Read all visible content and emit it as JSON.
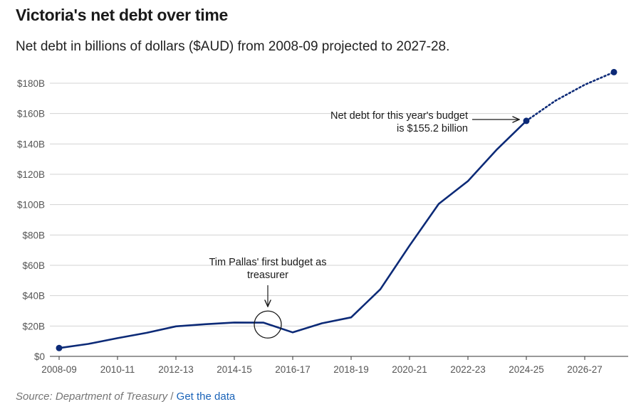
{
  "title": "Victoria's net debt over time",
  "subtitle": "Net debt in billions of dollars ($AUD) from 2008-09 projected to 2027-28.",
  "source_label": "Source: Department of Treasury",
  "source_separator": "/",
  "data_link": "Get the data",
  "chart_data": {
    "type": "line",
    "title": "Victoria's net debt over time",
    "xlabel": "",
    "ylabel": "",
    "ylim": [
      0,
      180
    ],
    "y_ticks": [
      0,
      20,
      40,
      60,
      80,
      100,
      120,
      140,
      160,
      180
    ],
    "y_tick_labels": [
      "$0",
      "$20B",
      "$40B",
      "$60B",
      "$80B",
      "$100B",
      "$120B",
      "$140B",
      "$160B",
      "$180B"
    ],
    "x_tick_labels": [
      "2008-09",
      "2010-11",
      "2012-13",
      "2014-15",
      "2016-17",
      "2018-19",
      "2020-21",
      "2022-23",
      "2024-25",
      "2026-27"
    ],
    "grid": true,
    "categories": [
      "2008-09",
      "2009-10",
      "2010-11",
      "2011-12",
      "2012-13",
      "2013-14",
      "2014-15",
      "2015-16",
      "2016-17",
      "2017-18",
      "2018-19",
      "2019-20",
      "2020-21",
      "2021-22",
      "2022-23",
      "2023-24",
      "2024-25",
      "2025-26",
      "2026-27",
      "2027-28"
    ],
    "values": [
      5.5,
      8.2,
      12,
      15.5,
      19.8,
      21.2,
      22.3,
      22.2,
      15.8,
      21.8,
      25.7,
      44.2,
      73,
      100.5,
      115.5,
      136.5,
      155.2,
      168.5,
      179,
      187.3
    ],
    "actual_through": "2024-25",
    "projected_from": "2024-25",
    "line_color": "#0c2a77",
    "grid_color": "#d3d3d3",
    "annotations": [
      {
        "lines": [
          "Tim Pallas' first budget as",
          "treasurer"
        ],
        "category": "2015-16",
        "value": 20.5
      },
      {
        "lines": [
          "Net debt for this year's budget",
          "is $155.2 billion"
        ],
        "category": "2024-25",
        "value": 155.2
      }
    ]
  }
}
